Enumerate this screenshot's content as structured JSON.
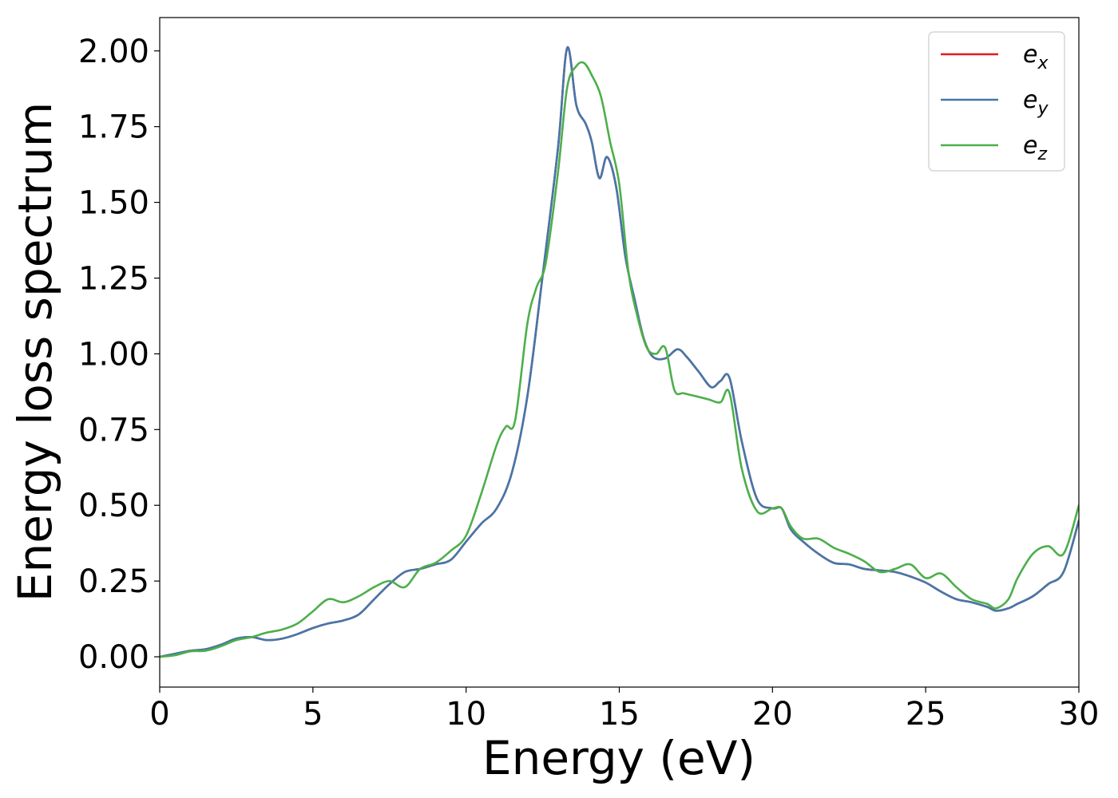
{
  "chart_data": {
    "type": "line",
    "title": "",
    "xlabel": "Energy (eV)",
    "ylabel": "Energy loss spectrum",
    "xlim": [
      0,
      30
    ],
    "ylim": [
      -0.1,
      2.11
    ],
    "xticks": [
      0,
      5,
      10,
      15,
      20,
      25,
      30
    ],
    "xtick_labels": [
      "0",
      "5",
      "10",
      "15",
      "20",
      "25",
      "30"
    ],
    "yticks": [
      0,
      0.25,
      0.5,
      0.75,
      1.0,
      1.25,
      1.5,
      1.75,
      2.0
    ],
    "ytick_labels": [
      "0.00",
      "0.25",
      "0.50",
      "0.75",
      "1.00",
      "1.25",
      "1.50",
      "1.75",
      "2.00"
    ],
    "grid": false,
    "legend_position": "top-right",
    "series": [
      {
        "name": "e_x",
        "label_base": "e",
        "label_sub": "x",
        "color": "#e41a1c",
        "x": [
          0,
          0.5,
          1,
          1.5,
          2,
          2.5,
          3,
          3.5,
          4,
          4.5,
          5,
          5.5,
          6,
          6.5,
          7,
          7.5,
          8,
          8.5,
          9,
          9.5,
          10,
          10.5,
          11,
          11.5,
          12,
          12.5,
          13,
          13.3,
          13.6,
          13.9,
          14.1,
          14.35,
          14.6,
          14.9,
          15.2,
          15.5,
          15.8,
          16.1,
          16.5,
          16.9,
          17.2,
          17.6,
          18,
          18.3,
          18.6,
          19,
          19.5,
          20,
          20.3,
          20.6,
          21,
          21.5,
          22,
          22.5,
          23,
          23.5,
          24,
          24.5,
          25,
          25.5,
          26,
          26.5,
          27,
          27.3,
          27.7,
          28,
          28.5,
          29,
          29.5,
          30
        ],
        "y": [
          0,
          0.01,
          0.02,
          0.025,
          0.04,
          0.06,
          0.065,
          0.055,
          0.06,
          0.075,
          0.095,
          0.11,
          0.12,
          0.14,
          0.19,
          0.24,
          0.28,
          0.29,
          0.305,
          0.32,
          0.38,
          0.44,
          0.49,
          0.61,
          0.86,
          1.26,
          1.68,
          2.01,
          1.82,
          1.76,
          1.7,
          1.58,
          1.65,
          1.55,
          1.32,
          1.18,
          1.05,
          0.99,
          0.985,
          1.015,
          0.99,
          0.94,
          0.89,
          0.91,
          0.92,
          0.71,
          0.52,
          0.49,
          0.49,
          0.42,
          0.38,
          0.34,
          0.31,
          0.305,
          0.29,
          0.285,
          0.28,
          0.265,
          0.245,
          0.215,
          0.19,
          0.18,
          0.165,
          0.152,
          0.16,
          0.175,
          0.2,
          0.24,
          0.28,
          0.45
        ]
      },
      {
        "name": "e_y",
        "label_base": "e",
        "label_sub": "y",
        "color": "#4477aa",
        "x": [
          0,
          0.5,
          1,
          1.5,
          2,
          2.5,
          3,
          3.5,
          4,
          4.5,
          5,
          5.5,
          6,
          6.5,
          7,
          7.5,
          8,
          8.5,
          9,
          9.5,
          10,
          10.5,
          11,
          11.5,
          12,
          12.5,
          13,
          13.3,
          13.6,
          13.9,
          14.1,
          14.35,
          14.6,
          14.9,
          15.2,
          15.5,
          15.8,
          16.1,
          16.5,
          16.9,
          17.2,
          17.6,
          18,
          18.3,
          18.6,
          19,
          19.5,
          20,
          20.3,
          20.6,
          21,
          21.5,
          22,
          22.5,
          23,
          23.5,
          24,
          24.5,
          25,
          25.5,
          26,
          26.5,
          27,
          27.3,
          27.7,
          28,
          28.5,
          29,
          29.5,
          30
        ],
        "y": [
          0,
          0.01,
          0.02,
          0.025,
          0.04,
          0.06,
          0.065,
          0.055,
          0.06,
          0.075,
          0.095,
          0.11,
          0.12,
          0.14,
          0.19,
          0.24,
          0.28,
          0.29,
          0.305,
          0.32,
          0.38,
          0.44,
          0.49,
          0.61,
          0.86,
          1.26,
          1.68,
          2.01,
          1.82,
          1.76,
          1.7,
          1.58,
          1.65,
          1.55,
          1.32,
          1.18,
          1.05,
          0.99,
          0.985,
          1.015,
          0.99,
          0.94,
          0.89,
          0.91,
          0.92,
          0.71,
          0.52,
          0.49,
          0.49,
          0.42,
          0.38,
          0.34,
          0.31,
          0.305,
          0.29,
          0.285,
          0.28,
          0.265,
          0.245,
          0.215,
          0.19,
          0.18,
          0.165,
          0.152,
          0.16,
          0.175,
          0.2,
          0.24,
          0.28,
          0.45
        ]
      },
      {
        "name": "e_z",
        "label_base": "e",
        "label_sub": "z",
        "color": "#4daf4a",
        "x": [
          0,
          0.5,
          1,
          1.5,
          2,
          2.5,
          3,
          3.5,
          4,
          4.5,
          5,
          5.5,
          6,
          6.5,
          7,
          7.5,
          8,
          8.5,
          9,
          9.5,
          10,
          10.5,
          11,
          11.3,
          11.6,
          12,
          12.3,
          12.6,
          13,
          13.3,
          13.6,
          13.85,
          14.1,
          14.4,
          14.7,
          15,
          15.3,
          15.6,
          15.9,
          16.2,
          16.5,
          16.8,
          17.1,
          17.5,
          17.9,
          18.3,
          18.6,
          19,
          19.5,
          20,
          20.3,
          20.6,
          21,
          21.5,
          22,
          22.5,
          23,
          23.5,
          24,
          24.5,
          25,
          25.5,
          26,
          26.5,
          27,
          27.3,
          27.7,
          28,
          28.5,
          29,
          29.5,
          30
        ],
        "y": [
          0,
          0.005,
          0.018,
          0.02,
          0.035,
          0.055,
          0.065,
          0.08,
          0.09,
          0.11,
          0.15,
          0.19,
          0.18,
          0.2,
          0.23,
          0.25,
          0.23,
          0.29,
          0.31,
          0.35,
          0.4,
          0.54,
          0.7,
          0.76,
          0.78,
          1.1,
          1.22,
          1.3,
          1.6,
          1.88,
          1.95,
          1.96,
          1.92,
          1.85,
          1.7,
          1.56,
          1.27,
          1.12,
          1.02,
          1.0,
          1.02,
          0.88,
          0.87,
          0.86,
          0.85,
          0.84,
          0.87,
          0.62,
          0.48,
          0.49,
          0.49,
          0.43,
          0.39,
          0.39,
          0.36,
          0.34,
          0.315,
          0.28,
          0.29,
          0.305,
          0.26,
          0.275,
          0.23,
          0.19,
          0.175,
          0.16,
          0.19,
          0.26,
          0.34,
          0.365,
          0.34,
          0.5
        ]
      }
    ]
  }
}
